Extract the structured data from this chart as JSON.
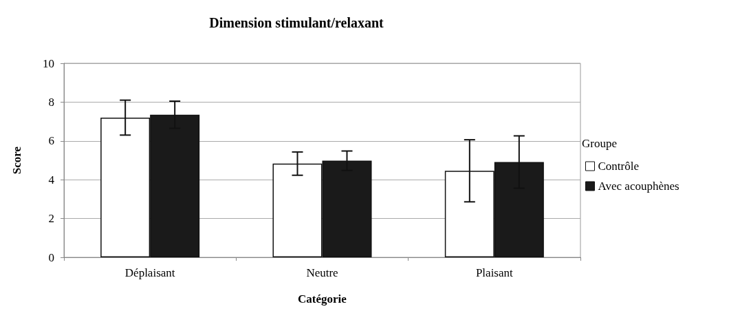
{
  "chart_data": {
    "type": "bar",
    "title": "Dimension stimulant/relaxant",
    "xlabel": "Catégorie",
    "ylabel": "Score",
    "legend_title": "Groupe",
    "categories": [
      "Déplaisant",
      "Neutre",
      "Plaisant"
    ],
    "series": [
      {
        "name": "Contrôle",
        "color": "#ffffff",
        "values": [
          7.2,
          4.83,
          4.46
        ],
        "errors": [
          0.9,
          0.6,
          1.6
        ]
      },
      {
        "name": "Avec acouphènes",
        "color": "#1a1a1a",
        "values": [
          7.35,
          4.98,
          4.91
        ],
        "errors": [
          0.7,
          0.5,
          1.35
        ]
      }
    ],
    "ylim": [
      0,
      10
    ],
    "yticks": [
      0,
      2,
      4,
      6,
      8,
      10
    ],
    "grid": "y",
    "legend": "right"
  }
}
